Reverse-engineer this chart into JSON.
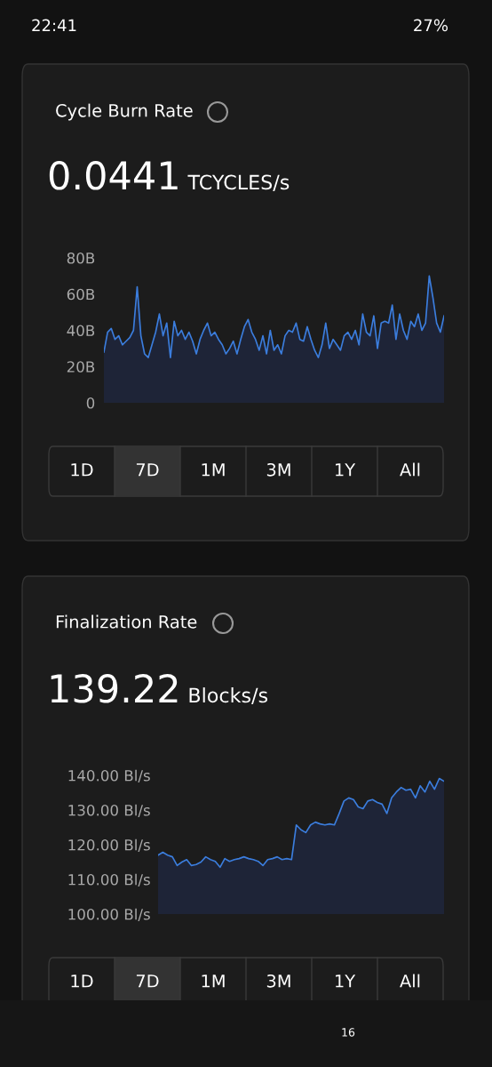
{
  "chart_data": [
    {
      "type": "area",
      "title": "Cycle Burn Rate",
      "subtitle": "0.0441 TCYCLES/s",
      "categories": [
        null,
        null,
        null,
        null,
        null,
        null,
        null,
        null,
        null,
        null,
        null,
        null,
        null,
        null,
        null,
        null,
        null,
        null,
        null,
        null,
        null,
        null,
        null,
        null,
        null,
        null,
        null,
        null,
        null,
        null,
        null,
        null,
        null,
        null,
        null,
        null,
        null,
        null,
        null,
        null,
        null,
        null,
        null,
        null,
        null,
        null,
        null,
        null,
        null,
        null,
        null,
        null,
        null,
        null,
        null,
        null,
        null,
        null,
        null,
        null,
        null,
        null,
        null,
        null,
        null,
        null,
        null,
        null,
        null,
        null,
        null,
        null,
        null,
        null,
        null,
        null,
        null,
        null,
        null,
        null,
        null,
        null,
        null,
        null,
        null,
        null,
        null,
        null,
        null,
        null,
        null,
        null,
        null
      ],
      "series": [
        {
          "color": "#3b7ddd",
          "values": [
            28,
            39,
            41,
            35,
            37,
            32,
            34,
            36,
            40,
            64,
            37,
            27,
            25,
            32,
            39,
            49,
            37,
            44,
            25,
            45,
            37,
            40,
            35,
            39,
            34,
            27,
            35,
            40,
            44,
            37,
            39,
            35,
            32,
            27,
            30,
            34,
            27,
            35,
            42,
            46,
            39,
            35,
            29,
            37,
            27,
            40,
            29,
            32,
            27,
            37,
            40,
            39,
            44,
            35,
            34,
            42,
            35,
            29,
            25,
            32,
            44,
            30,
            35,
            32,
            29,
            37,
            39,
            35,
            40,
            32,
            49,
            39,
            37,
            48,
            30,
            44,
            45,
            44,
            54,
            35,
            49,
            40,
            35,
            45,
            42,
            49,
            40,
            44,
            70,
            58,
            44,
            39,
            48
          ]
        }
      ],
      "ylim": [
        0,
        80
      ],
      "yticks": [
        {
          "value": 0,
          "label": "0"
        },
        {
          "value": 20,
          "label": "20B"
        },
        {
          "value": 40,
          "label": "40B"
        },
        {
          "value": 60,
          "label": "60B"
        },
        {
          "value": 80,
          "label": "80B"
        }
      ],
      "grid": false,
      "legend": false,
      "tick_labels": "y",
      "annotations": [
        "1D",
        "7D",
        "1M",
        "3M",
        "1Y",
        "All",
        "22:41",
        "27%"
      ]
    },
    {
      "type": "area",
      "title": "Finalization Rate",
      "subtitle": "139.22 Blocks/s",
      "categories": [
        null,
        null,
        null,
        null,
        null,
        null,
        null,
        null,
        null,
        null,
        null,
        null,
        null,
        null,
        null,
        null,
        null,
        null,
        null,
        null,
        null,
        null,
        null,
        null,
        null,
        null,
        null,
        null,
        null,
        null,
        null,
        null,
        null,
        null,
        null,
        null,
        null,
        null,
        null,
        null,
        null,
        null,
        null,
        null,
        null,
        null,
        null,
        null,
        null,
        null,
        null,
        null,
        null,
        null,
        null,
        null,
        null,
        null,
        null,
        null,
        null
      ],
      "series": [
        {
          "color": "#3b7ddd",
          "values": [
            117,
            117.8,
            117,
            116.5,
            114,
            115,
            115.7,
            114,
            114.3,
            115,
            116.5,
            115.7,
            115.2,
            113.5,
            116,
            115.2,
            115.7,
            116,
            116.5,
            116,
            115.7,
            115.2,
            114,
            115.7,
            116,
            116.5,
            115.7,
            116,
            115.7,
            125.7,
            124.3,
            123.5,
            125.7,
            126.5,
            126,
            125.7,
            126,
            125.7,
            129,
            132.6,
            133.5,
            133,
            130.9,
            130.4,
            132.6,
            133,
            132.2,
            131.7,
            129,
            133.5,
            135.2,
            136.5,
            135.7,
            136,
            133.5,
            137,
            135.2,
            138.3,
            136,
            139.1,
            138.3
          ]
        }
      ],
      "ylim": [
        100,
        140
      ],
      "yticks": [
        {
          "value": 100,
          "label": "100.00 Bl/s"
        },
        {
          "value": 110,
          "label": "110.00 Bl/s"
        },
        {
          "value": 120,
          "label": "120.00 Bl/s"
        },
        {
          "value": 130,
          "label": "130.00 Bl/s"
        },
        {
          "value": 140,
          "label": "140.00 Bl/s"
        }
      ],
      "grid": false,
      "legend": false,
      "tick_labels": "y",
      "annotations": [
        "1D",
        "7D",
        "1M",
        "3M",
        "1Y",
        "All",
        "16"
      ]
    }
  ]
}
